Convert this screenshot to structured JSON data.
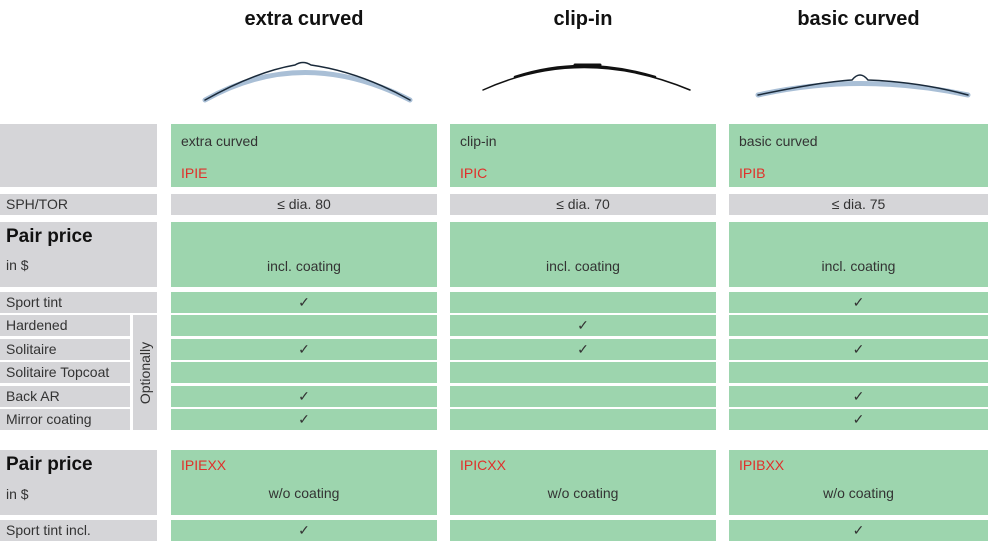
{
  "columns": [
    {
      "title": "extra curved",
      "name": "extra curved",
      "code": "IPIE",
      "sph_tor": "≤ dia. 80",
      "pair_price_note": "incl. coating",
      "code_wo": "IPIEXX",
      "pair_price_wo_note": "w/o coating"
    },
    {
      "title": "clip-in",
      "name": "clip-in",
      "code": "IPIC",
      "sph_tor": "≤ dia. 70",
      "pair_price_note": "incl. coating",
      "code_wo": "IPICXX",
      "pair_price_wo_note": "w/o coating"
    },
    {
      "title": "basic curved",
      "name": "basic curved",
      "code": "IPIB",
      "sph_tor": "≤ dia. 75",
      "pair_price_note": "incl. coating",
      "code_wo": "IPIBXX",
      "pair_price_wo_note": "w/o coating"
    }
  ],
  "labels": {
    "sph_tor": "SPH/TOR",
    "pair_price": "Pair price",
    "pair_price_unit": "in $",
    "optionally": "Optionally",
    "pair_price_wo": "Pair price",
    "pair_price_wo_unit": "in $"
  },
  "options": [
    {
      "label": "Sport tint",
      "cells": [
        "✓",
        null,
        "✓"
      ]
    },
    {
      "label": "Hardened",
      "cells": [
        null,
        "✓",
        null
      ]
    },
    {
      "label": "Solitaire",
      "cells": [
        "✓",
        "✓",
        "✓"
      ]
    },
    {
      "label": "Solitaire Topcoat",
      "cells": [
        null,
        null,
        null
      ]
    },
    {
      "label": "Back AR",
      "cells": [
        "✓",
        null,
        "✓"
      ]
    },
    {
      "label": "Mirror coating",
      "cells": [
        "✓",
        null,
        "✓"
      ]
    }
  ],
  "extras": [
    {
      "label": "Sport tint incl.",
      "cells": [
        "✓",
        null,
        "✓"
      ]
    }
  ]
}
